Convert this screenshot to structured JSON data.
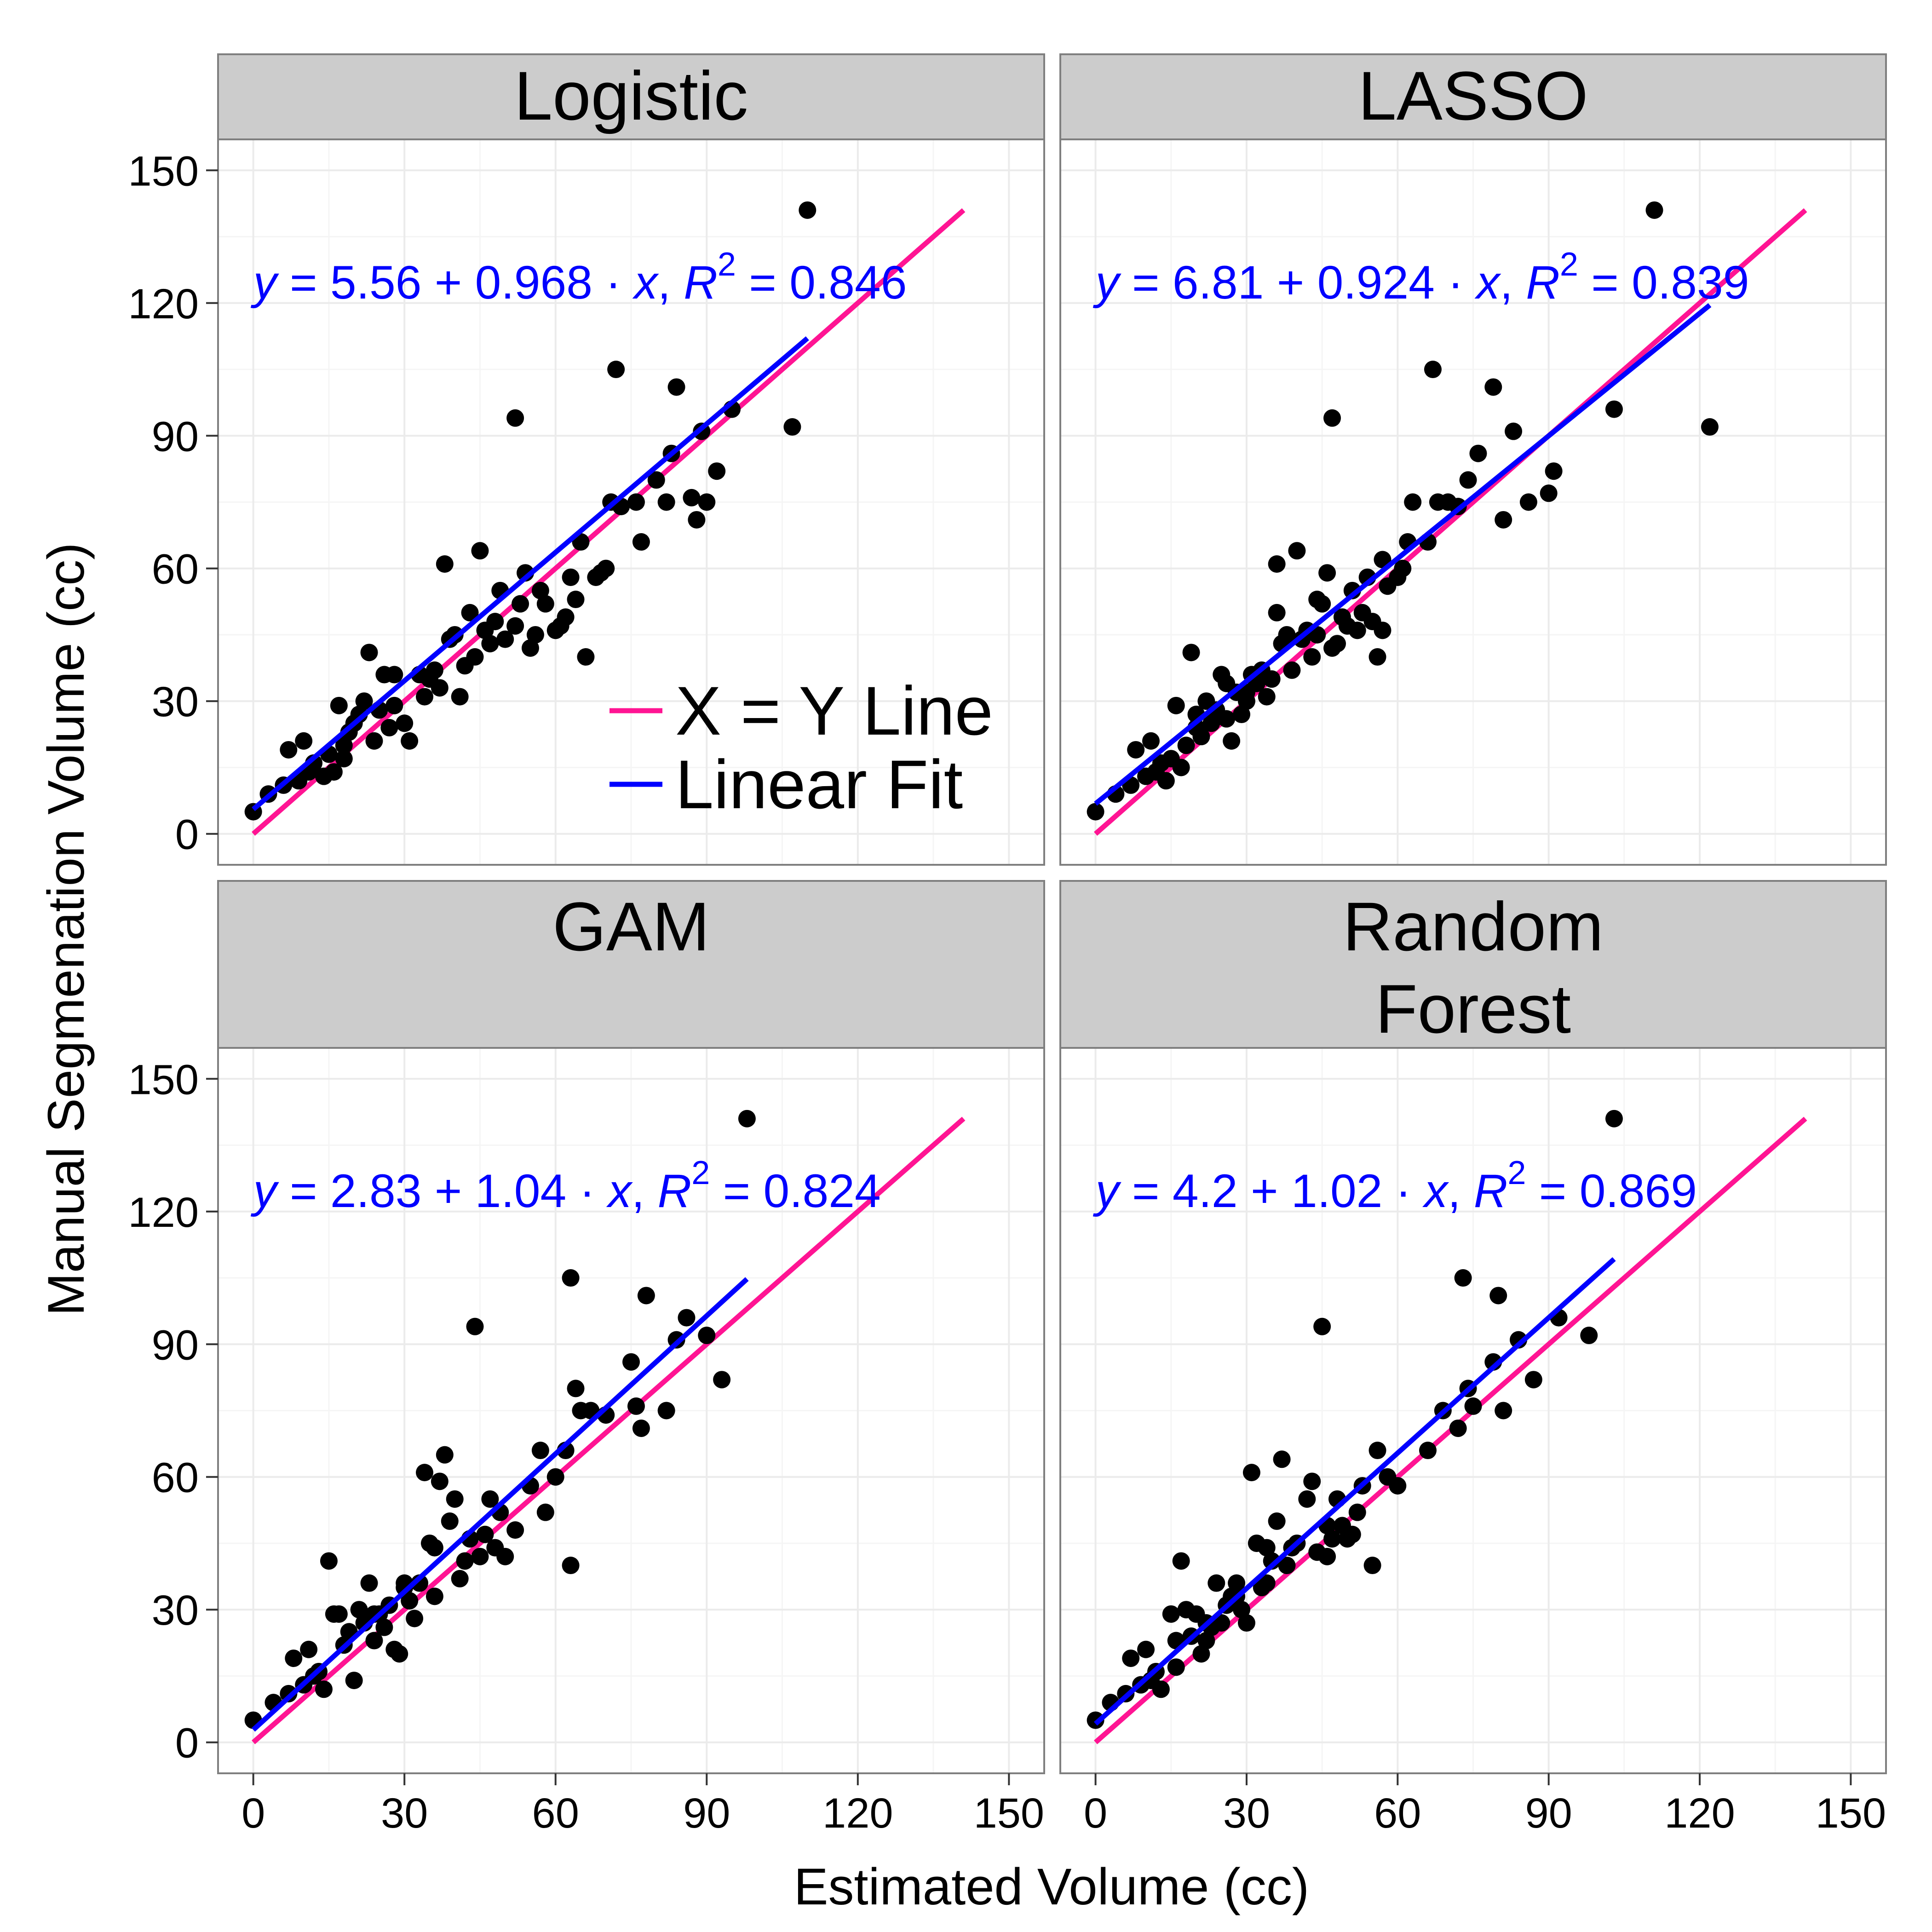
{
  "chart_data": {
    "type": "scatter",
    "xlabel": "Estimated Volume (cc)",
    "ylabel": "Manual Segmenation Volume (cc)",
    "xlim": [
      -7,
      157
    ],
    "ylim": [
      -7,
      157
    ],
    "xticks": [
      0,
      30,
      60,
      90,
      120,
      150
    ],
    "yticks": [
      0,
      30,
      60,
      90,
      120,
      150
    ],
    "grid": true,
    "legend": {
      "position": "inside-lower-right of top-left panel",
      "entries": [
        {
          "label": "X = Y Line",
          "color": "#ff1493"
        },
        {
          "label": "Linear Fit",
          "color": "#0000ff"
        }
      ]
    },
    "colors": {
      "points": "#000000",
      "identity_line": "#ff1493",
      "fit_line": "#0000ff",
      "equation_text": "#0000ff",
      "strip_background": "#cccccc",
      "panel_border": "#7f7f7f",
      "grid_major": "#ebebeb",
      "grid_minor": "#f5f5f5"
    },
    "panels": [
      {
        "title_lines": [
          "Logistic"
        ],
        "equation": {
          "intercept": "5.56",
          "slope": "0.968",
          "r2": "0.846"
        },
        "fit_range": [
          0,
          110
        ],
        "points": [
          [
            0,
            5
          ],
          [
            3,
            9
          ],
          [
            6,
            11
          ],
          [
            7,
            19
          ],
          [
            9,
            12
          ],
          [
            10,
            21
          ],
          [
            11,
            14
          ],
          [
            12,
            16
          ],
          [
            14,
            13
          ],
          [
            15,
            18
          ],
          [
            16,
            14
          ],
          [
            17,
            29
          ],
          [
            18,
            20
          ],
          [
            19,
            23
          ],
          [
            20,
            25
          ],
          [
            21,
            27
          ],
          [
            22,
            30
          ],
          [
            23,
            41
          ],
          [
            24,
            21
          ],
          [
            25,
            28
          ],
          [
            26,
            36
          ],
          [
            27,
            24
          ],
          [
            28,
            29
          ],
          [
            30,
            25
          ],
          [
            31,
            21
          ],
          [
            33,
            36
          ],
          [
            34,
            31
          ],
          [
            35,
            35
          ],
          [
            36,
            37
          ],
          [
            37,
            33
          ],
          [
            38,
            61
          ],
          [
            39,
            44
          ],
          [
            40,
            45
          ],
          [
            41,
            31
          ],
          [
            42,
            38
          ],
          [
            43,
            50
          ],
          [
            44,
            40
          ],
          [
            45,
            64
          ],
          [
            46,
            46
          ],
          [
            47,
            43
          ],
          [
            48,
            48
          ],
          [
            49,
            55
          ],
          [
            50,
            44
          ],
          [
            52,
            47
          ],
          [
            53,
            52
          ],
          [
            54,
            59
          ],
          [
            55,
            42
          ],
          [
            56,
            45
          ],
          [
            57,
            55
          ],
          [
            58,
            52
          ],
          [
            60,
            46
          ],
          [
            61,
            47
          ],
          [
            62,
            49
          ],
          [
            63,
            58
          ],
          [
            64,
            53
          ],
          [
            65,
            66
          ],
          [
            66,
            40
          ],
          [
            68,
            58
          ],
          [
            69,
            59
          ],
          [
            70,
            60
          ],
          [
            71,
            75
          ],
          [
            72,
            105
          ],
          [
            73,
            74
          ],
          [
            76,
            75
          ],
          [
            77,
            66
          ],
          [
            80,
            80
          ],
          [
            82,
            75
          ],
          [
            83,
            86
          ],
          [
            84,
            101
          ],
          [
            87,
            76
          ],
          [
            88,
            71
          ],
          [
            89,
            91
          ],
          [
            90,
            75
          ],
          [
            92,
            82
          ],
          [
            95,
            96
          ],
          [
            107,
            92
          ],
          [
            110,
            141
          ],
          [
            52,
            94
          ],
          [
            28,
            36
          ],
          [
            18,
            17
          ]
        ]
      },
      {
        "title_lines": [
          "LASSO"
        ],
        "equation": {
          "intercept": "6.81",
          "slope": "0.924",
          "r2": "0.839"
        },
        "fit_range": [
          0,
          122
        ],
        "points": [
          [
            0,
            5
          ],
          [
            4,
            9
          ],
          [
            7,
            11
          ],
          [
            8,
            19
          ],
          [
            10,
            13
          ],
          [
            11,
            21
          ],
          [
            12,
            14
          ],
          [
            13,
            16
          ],
          [
            14,
            12
          ],
          [
            15,
            17
          ],
          [
            16,
            29
          ],
          [
            17,
            15
          ],
          [
            18,
            20
          ],
          [
            19,
            41
          ],
          [
            20,
            24
          ],
          [
            21,
            22
          ],
          [
            22,
            30
          ],
          [
            23,
            25
          ],
          [
            24,
            28
          ],
          [
            25,
            36
          ],
          [
            26,
            26
          ],
          [
            27,
            21
          ],
          [
            28,
            32
          ],
          [
            29,
            27
          ],
          [
            30,
            30
          ],
          [
            31,
            36
          ],
          [
            32,
            34
          ],
          [
            33,
            37
          ],
          [
            34,
            31
          ],
          [
            35,
            35
          ],
          [
            36,
            61
          ],
          [
            37,
            43
          ],
          [
            38,
            45
          ],
          [
            39,
            37
          ],
          [
            40,
            64
          ],
          [
            41,
            44
          ],
          [
            42,
            46
          ],
          [
            43,
            40
          ],
          [
            44,
            45
          ],
          [
            45,
            52
          ],
          [
            46,
            59
          ],
          [
            47,
            42
          ],
          [
            48,
            43
          ],
          [
            49,
            49
          ],
          [
            50,
            47
          ],
          [
            51,
            55
          ],
          [
            52,
            46
          ],
          [
            53,
            50
          ],
          [
            54,
            58
          ],
          [
            55,
            48
          ],
          [
            56,
            40
          ],
          [
            57,
            46
          ],
          [
            58,
            56
          ],
          [
            60,
            58
          ],
          [
            61,
            60
          ],
          [
            62,
            66
          ],
          [
            63,
            75
          ],
          [
            66,
            66
          ],
          [
            68,
            75
          ],
          [
            70,
            75
          ],
          [
            72,
            74
          ],
          [
            74,
            80
          ],
          [
            76,
            86
          ],
          [
            79,
            101
          ],
          [
            81,
            71
          ],
          [
            83,
            91
          ],
          [
            86,
            75
          ],
          [
            90,
            77
          ],
          [
            91,
            82
          ],
          [
            103,
            96
          ],
          [
            111,
            141
          ],
          [
            67,
            105
          ],
          [
            47,
            94
          ],
          [
            122,
            92
          ],
          [
            36,
            50
          ],
          [
            26,
            34
          ],
          [
            44,
            53
          ],
          [
            57,
            62
          ],
          [
            20,
            27
          ],
          [
            30,
            32
          ]
        ]
      },
      {
        "title_lines": [
          "GAM"
        ],
        "equation": {
          "intercept": "2.83",
          "slope": "1.04",
          "r2": "0.824"
        },
        "fit_range": [
          0,
          98
        ],
        "points": [
          [
            0,
            5
          ],
          [
            4,
            9
          ],
          [
            7,
            11
          ],
          [
            8,
            19
          ],
          [
            10,
            13
          ],
          [
            11,
            21
          ],
          [
            12,
            15
          ],
          [
            13,
            16
          ],
          [
            14,
            12
          ],
          [
            15,
            41
          ],
          [
            16,
            29
          ],
          [
            17,
            29
          ],
          [
            18,
            22
          ],
          [
            19,
            25
          ],
          [
            20,
            14
          ],
          [
            21,
            30
          ],
          [
            22,
            27
          ],
          [
            23,
            36
          ],
          [
            24,
            23
          ],
          [
            25,
            29
          ],
          [
            26,
            26
          ],
          [
            27,
            31
          ],
          [
            28,
            21
          ],
          [
            29,
            20
          ],
          [
            30,
            35
          ],
          [
            31,
            32
          ],
          [
            32,
            28
          ],
          [
            33,
            36
          ],
          [
            34,
            61
          ],
          [
            35,
            45
          ],
          [
            36,
            44
          ],
          [
            37,
            59
          ],
          [
            38,
            65
          ],
          [
            39,
            50
          ],
          [
            40,
            55
          ],
          [
            41,
            37
          ],
          [
            42,
            41
          ],
          [
            43,
            46
          ],
          [
            44,
            94
          ],
          [
            45,
            42
          ],
          [
            46,
            47
          ],
          [
            47,
            55
          ],
          [
            48,
            44
          ],
          [
            49,
            52
          ],
          [
            50,
            42
          ],
          [
            52,
            48
          ],
          [
            55,
            58
          ],
          [
            57,
            66
          ],
          [
            58,
            52
          ],
          [
            60,
            60
          ],
          [
            62,
            66
          ],
          [
            63,
            40
          ],
          [
            64,
            80
          ],
          [
            65,
            75
          ],
          [
            67,
            75
          ],
          [
            70,
            74
          ],
          [
            75,
            86
          ],
          [
            76,
            76
          ],
          [
            77,
            71
          ],
          [
            78,
            101
          ],
          [
            82,
            75
          ],
          [
            84,
            91
          ],
          [
            86,
            96
          ],
          [
            90,
            92
          ],
          [
            93,
            82
          ],
          [
            98,
            141
          ],
          [
            63,
            105
          ],
          [
            36,
            33
          ],
          [
            24,
            29
          ],
          [
            30,
            36
          ]
        ]
      },
      {
        "title_lines": [
          "Random",
          "Forest"
        ],
        "equation": {
          "intercept": "4.2",
          "slope": "1.02",
          "r2": "0.869"
        },
        "fit_range": [
          0,
          103
        ],
        "points": [
          [
            0,
            5
          ],
          [
            3,
            9
          ],
          [
            6,
            11
          ],
          [
            7,
            19
          ],
          [
            9,
            13
          ],
          [
            10,
            21
          ],
          [
            11,
            14
          ],
          [
            12,
            16
          ],
          [
            13,
            12
          ],
          [
            15,
            29
          ],
          [
            16,
            17
          ],
          [
            17,
            41
          ],
          [
            18,
            30
          ],
          [
            19,
            24
          ],
          [
            20,
            29
          ],
          [
            21,
            20
          ],
          [
            22,
            23
          ],
          [
            23,
            26
          ],
          [
            24,
            36
          ],
          [
            25,
            27
          ],
          [
            26,
            31
          ],
          [
            27,
            33
          ],
          [
            28,
            36
          ],
          [
            29,
            30
          ],
          [
            30,
            27
          ],
          [
            31,
            61
          ],
          [
            32,
            45
          ],
          [
            33,
            35
          ],
          [
            34,
            44
          ],
          [
            35,
            41
          ],
          [
            36,
            50
          ],
          [
            37,
            64
          ],
          [
            38,
            40
          ],
          [
            39,
            44
          ],
          [
            40,
            45
          ],
          [
            42,
            55
          ],
          [
            43,
            59
          ],
          [
            44,
            43
          ],
          [
            45,
            94
          ],
          [
            46,
            42
          ],
          [
            47,
            46
          ],
          [
            48,
            55
          ],
          [
            49,
            49
          ],
          [
            50,
            46
          ],
          [
            51,
            47
          ],
          [
            52,
            52
          ],
          [
            53,
            58
          ],
          [
            55,
            40
          ],
          [
            56,
            66
          ],
          [
            58,
            60
          ],
          [
            60,
            58
          ],
          [
            66,
            66
          ],
          [
            69,
            75
          ],
          [
            73,
            105
          ],
          [
            74,
            80
          ],
          [
            75,
            76
          ],
          [
            79,
            86
          ],
          [
            80,
            101
          ],
          [
            81,
            75
          ],
          [
            84,
            91
          ],
          [
            87,
            82
          ],
          [
            92,
            96
          ],
          [
            98,
            92
          ],
          [
            103,
            141
          ],
          [
            72,
            71
          ],
          [
            28,
            33
          ],
          [
            22,
            27
          ],
          [
            34,
            36
          ],
          [
            46,
            49
          ],
          [
            16,
            23
          ]
        ]
      }
    ]
  }
}
